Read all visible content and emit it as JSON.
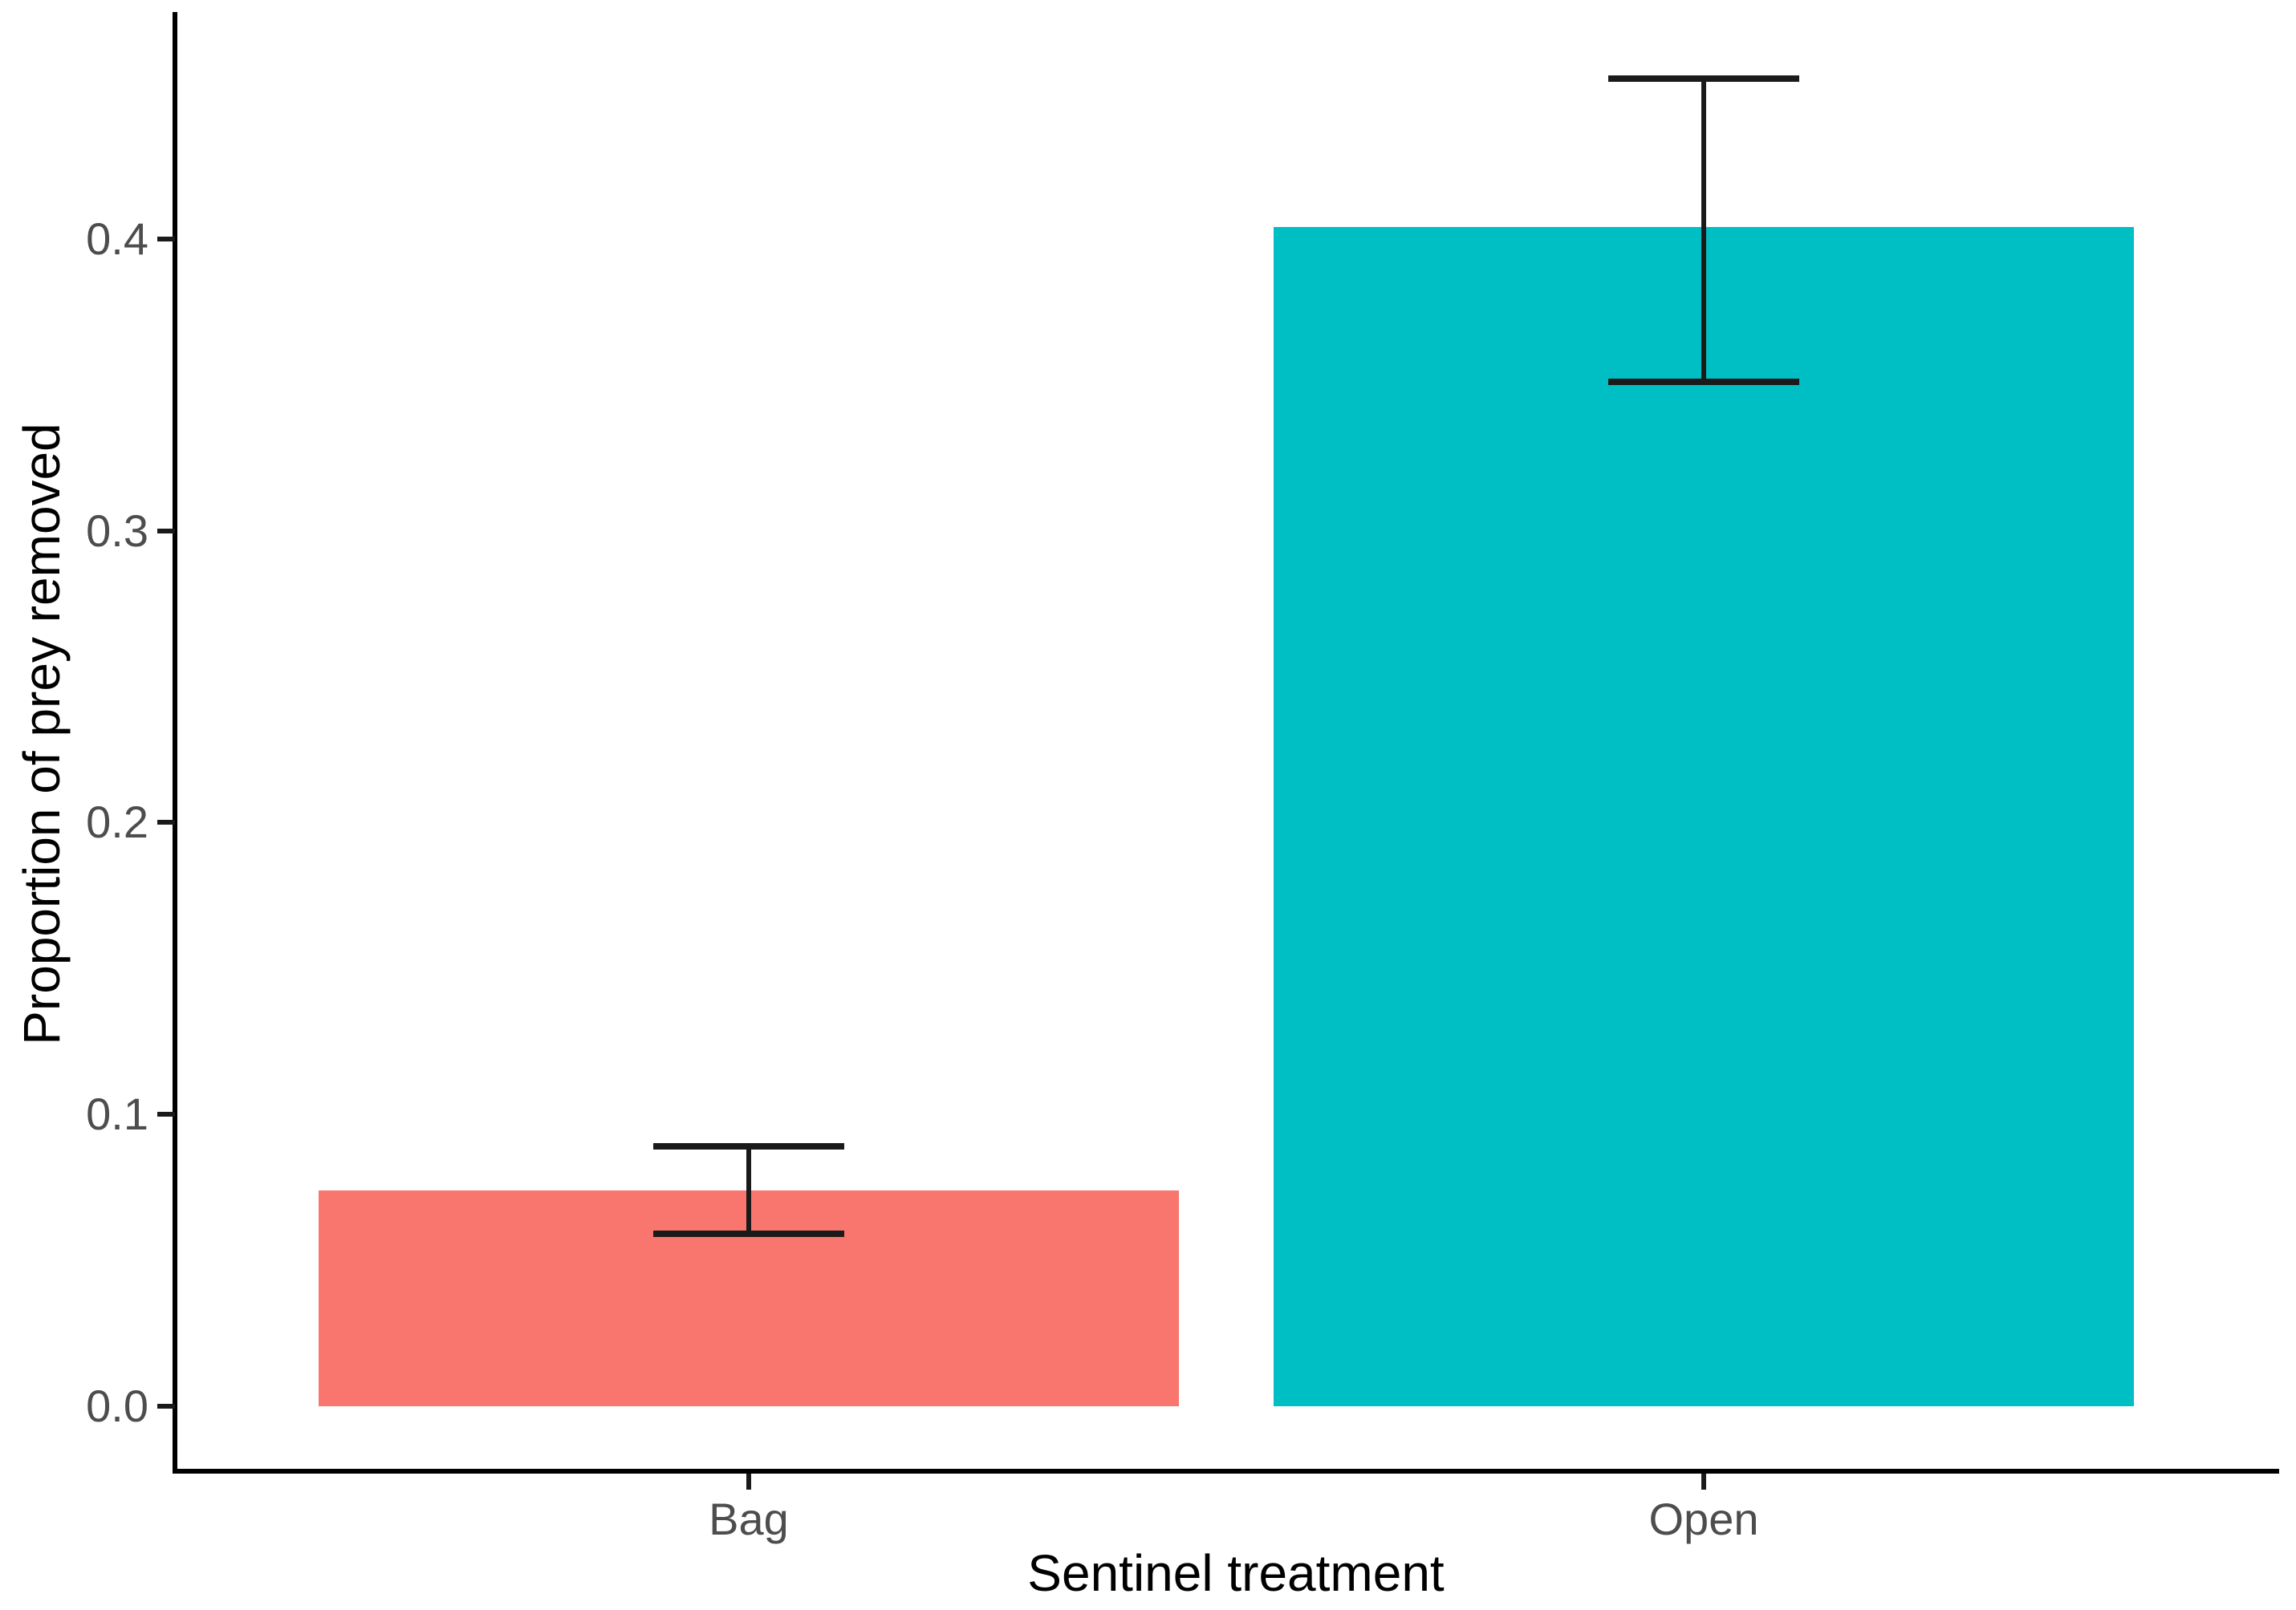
{
  "chart_data": {
    "type": "bar",
    "title": "",
    "xlabel": "Sentinel treatment",
    "ylabel": "Proportion of prey removed",
    "categories": [
      "Bag",
      "Open"
    ],
    "values": [
      0.074,
      0.404
    ],
    "error_bars": {
      "lower": [
        0.059,
        0.351
      ],
      "upper": [
        0.089,
        0.455
      ]
    },
    "bar_colors": [
      "#F8766D",
      "#00BFC4"
    ],
    "y_ticks": [
      {
        "value": 0.0,
        "label": "0.0"
      },
      {
        "value": 0.1,
        "label": "0.1"
      },
      {
        "value": 0.2,
        "label": "0.2"
      },
      {
        "value": 0.3,
        "label": "0.3"
      },
      {
        "value": 0.4,
        "label": "0.4"
      }
    ],
    "ylim": [
      0,
      0.478
    ],
    "grid": false,
    "legend": "none",
    "background": "#ffffff",
    "axis_line_color": "#000000",
    "tick_color": "#1a1a1a",
    "tick_label_color": "#4d4d4d",
    "axis_title_color": "#000000",
    "error_bar_color": "#1a1a1a",
    "bar_width_ratio": 0.9,
    "error_cap_width_ratio": 0.2
  }
}
